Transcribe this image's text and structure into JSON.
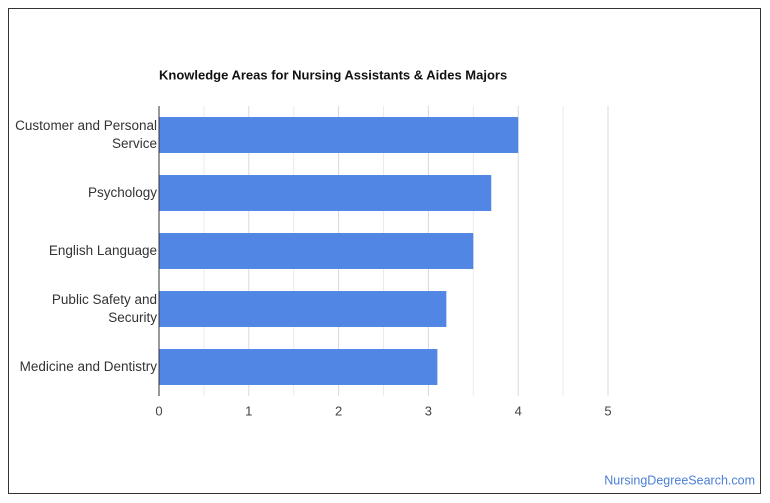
{
  "chart_data": {
    "type": "bar",
    "orientation": "horizontal",
    "title": "Knowledge Areas for Nursing Assistants & Aides Majors",
    "categories": [
      "Customer and Personal Service",
      "Psychology",
      "English Language",
      "Public Safety and Security",
      "Medicine and Dentistry"
    ],
    "values": [
      4.0,
      3.7,
      3.5,
      3.2,
      3.1
    ],
    "color": "#5286e4",
    "xlim": [
      0,
      5
    ],
    "xticks": [
      0,
      1,
      2,
      3,
      4,
      5
    ],
    "minor_xticks": [
      0.5,
      1.5,
      2.5,
      3.5,
      4.5
    ],
    "grid": true,
    "source": "NursingDegreeSearch.com"
  }
}
